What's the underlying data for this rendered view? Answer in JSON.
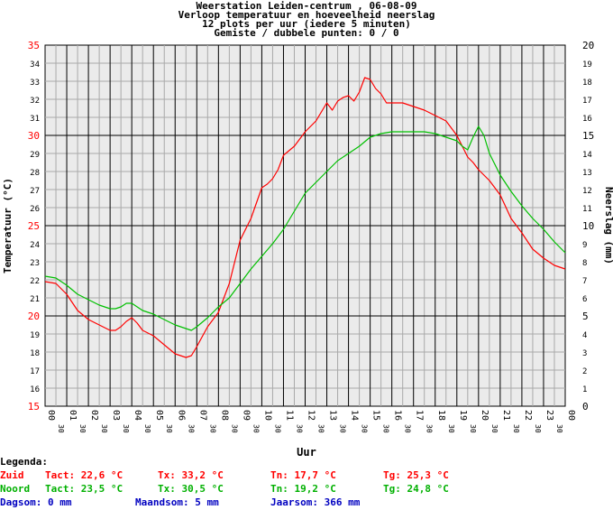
{
  "header": {
    "line1": "Weerstation Leiden-centrum , 06-08-09",
    "line2": "Verloop temperatuur en hoeveelheid neerslag",
    "line3": "12 plots per uur (iedere 5 minuten)",
    "line4": "Gemiste / dubbele punten: 0 / 0"
  },
  "chart_data": {
    "type": "line",
    "xlabel": "Uur",
    "ylabel_left": "Temperatuur (°C)",
    "ylabel_right": "Neerslag (mm)",
    "xlim": [
      0,
      24
    ],
    "ylim_left": [
      15,
      35
    ],
    "ylim_right": [
      0,
      20
    ],
    "grid": true,
    "hour_ticks": [
      "00",
      "01",
      "02",
      "03",
      "04",
      "05",
      "06",
      "07",
      "08",
      "09",
      "10",
      "11",
      "12",
      "13",
      "14",
      "15",
      "16",
      "17",
      "18",
      "19",
      "20",
      "21",
      "22",
      "23",
      "00"
    ],
    "half_tick": "30",
    "left_ticks": [
      15,
      16,
      17,
      18,
      19,
      20,
      21,
      22,
      23,
      24,
      25,
      26,
      27,
      28,
      29,
      30,
      31,
      32,
      33,
      34,
      35
    ],
    "right_ticks": [
      0,
      1,
      2,
      3,
      4,
      5,
      6,
      7,
      8,
      9,
      10,
      11,
      12,
      13,
      14,
      15,
      16,
      17,
      18,
      19,
      20
    ],
    "series": [
      {
        "name": "Zuid",
        "color": "#ff0000",
        "x": [
          0,
          0.5,
          1,
          1.5,
          2,
          2.5,
          3,
          3.25,
          3.5,
          3.75,
          4,
          4.25,
          4.5,
          5,
          5.5,
          6,
          6.5,
          6.75,
          7,
          7.5,
          8,
          8.5,
          9,
          9.5,
          10,
          10.25,
          10.5,
          10.75,
          11,
          11.5,
          12,
          12.5,
          13,
          13.25,
          13.5,
          13.75,
          14,
          14.25,
          14.5,
          14.75,
          15,
          15.25,
          15.5,
          15.75,
          16,
          16.5,
          17,
          17.5,
          18,
          18.5,
          19,
          19.25,
          19.5,
          19.75,
          20,
          20.5,
          21,
          21.5,
          22,
          22.5,
          23,
          23.5,
          24
        ],
        "values": [
          21.9,
          21.8,
          21.2,
          20.3,
          19.8,
          19.5,
          19.2,
          19.2,
          19.4,
          19.7,
          19.9,
          19.6,
          19.2,
          18.9,
          18.4,
          17.9,
          17.7,
          17.8,
          18.3,
          19.4,
          20.2,
          21.8,
          24.2,
          25.4,
          27.1,
          27.3,
          27.6,
          28.1,
          28.9,
          29.4,
          30.2,
          30.8,
          31.8,
          31.4,
          31.9,
          32.1,
          32.2,
          31.9,
          32.4,
          33.2,
          33.1,
          32.6,
          32.3,
          31.8,
          31.8,
          31.8,
          31.6,
          31.4,
          31.1,
          30.8,
          30.0,
          29.4,
          28.8,
          28.5,
          28.1,
          27.5,
          26.7,
          25.4,
          24.6,
          23.7,
          23.2,
          22.8,
          22.6
        ]
      },
      {
        "name": "Noord",
        "color": "#00c000",
        "x": [
          0,
          0.5,
          1,
          1.5,
          2,
          2.5,
          3,
          3.25,
          3.5,
          3.75,
          4,
          4.25,
          4.5,
          5,
          5.5,
          6,
          6.5,
          6.75,
          7,
          7.5,
          8,
          8.5,
          9,
          9.5,
          10,
          10.5,
          11,
          11.5,
          12,
          12.5,
          13,
          13.5,
          14,
          14.5,
          15,
          15.5,
          16,
          16.5,
          17,
          17.5,
          18,
          18.5,
          19,
          19.25,
          19.5,
          19.75,
          20,
          20.25,
          20.5,
          21,
          21.5,
          22,
          22.5,
          23,
          23.5,
          24
        ],
        "values": [
          22.2,
          22.1,
          21.7,
          21.2,
          20.9,
          20.6,
          20.4,
          20.4,
          20.5,
          20.7,
          20.7,
          20.5,
          20.3,
          20.1,
          19.8,
          19.5,
          19.3,
          19.2,
          19.4,
          19.9,
          20.5,
          21.0,
          21.8,
          22.6,
          23.3,
          24.0,
          24.8,
          25.8,
          26.8,
          27.4,
          28.0,
          28.6,
          29.0,
          29.4,
          29.9,
          30.1,
          30.2,
          30.2,
          30.2,
          30.2,
          30.1,
          29.9,
          29.7,
          29.4,
          29.2,
          29.9,
          30.5,
          30.0,
          29.0,
          27.8,
          26.9,
          26.1,
          25.4,
          24.8,
          24.1,
          23.5
        ]
      }
    ]
  },
  "legend": {
    "title": "Legenda:",
    "zuid": {
      "name": "Zuid",
      "tact": "Tact: 22,6 °C",
      "tx": "Tx: 33,2 °C",
      "tn": "Tn: 17,7 °C",
      "tg": "Tg: 25,3 °C",
      "color": "#ff0000"
    },
    "noord": {
      "name": "Noord",
      "tact": "Tact: 23,5 °C",
      "tx": "Tx: 30,5 °C",
      "tn": "Tn: 19,2 °C",
      "tg": "Tg: 24,8 °C",
      "color": "#00b000"
    },
    "rain": {
      "dag": "Dagsom: 0 mm",
      "maand": "Maandsom: 5 mm",
      "jaar": "Jaarsom: 366 mm",
      "color": "#0000c0"
    }
  }
}
